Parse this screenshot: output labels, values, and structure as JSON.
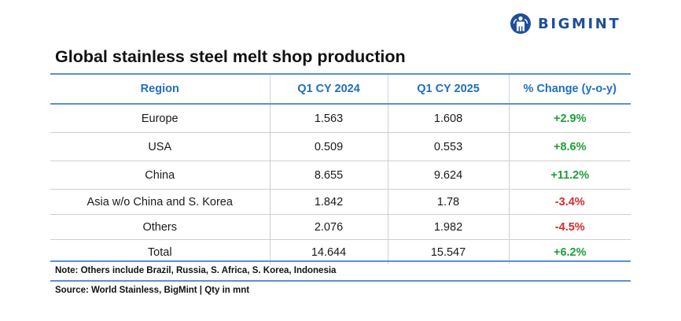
{
  "brand": {
    "logo_icon": "bigmint-logo-icon",
    "name": "BIGMINT",
    "color": "#1f4e9c"
  },
  "title": "Global stainless steel melt shop production",
  "table": {
    "headers": [
      "Region",
      "Q1 CY 2024",
      "Q1 CY 2025",
      "% Change (y-o-y)"
    ],
    "rows": [
      {
        "region": "Europe",
        "q1_2024": "1.563",
        "q1_2025": "1.608",
        "change": "+2.9%",
        "direction": "positive"
      },
      {
        "region": "USA",
        "q1_2024": "0.509",
        "q1_2025": "0.553",
        "change": "+8.6%",
        "direction": "positive"
      },
      {
        "region": "China",
        "q1_2024": "8.655",
        "q1_2025": "9.624",
        "change": "+11.2%",
        "direction": "positive"
      },
      {
        "region": "Asia w/o China and S. Korea",
        "q1_2024": "1.842",
        "q1_2025": "1.78",
        "change": "-3.4%",
        "direction": "negative"
      },
      {
        "region": "Others",
        "q1_2024": "2.076",
        "q1_2025": "1.982",
        "change": "-4.5%",
        "direction": "negative"
      },
      {
        "region": "Total",
        "q1_2024": "14.644",
        "q1_2025": "15.547",
        "change": "+6.2%",
        "direction": "positive"
      }
    ]
  },
  "colors": {
    "header_text": "#1f6fbf",
    "rule": "#5b8fd6",
    "positive": "#1f9e3a",
    "negative": "#d62b2b"
  },
  "note": "Note: Others include Brazil, Russia, S. Africa, S. Korea, Indonesia",
  "source": "Source: World Stainless, BigMint | Qty in mnt"
}
